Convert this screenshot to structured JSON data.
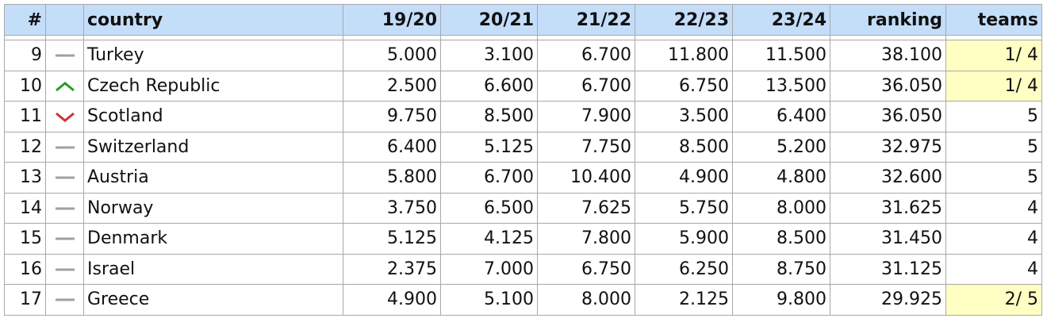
{
  "table": {
    "headers": [
      "#",
      "country",
      "19/20",
      "20/21",
      "21/22",
      "22/23",
      "23/24",
      "ranking",
      "teams"
    ],
    "rows": [
      [
        9,
        "Turkey",
        "5.000",
        "3.100",
        "6.700",
        "11.800",
        "11.500",
        "38.100",
        "1/ 4"
      ],
      [
        10,
        "Czech Republic",
        "2.500",
        "6.600",
        "6.700",
        "6.750",
        "13.500",
        "36.050",
        "1/ 4"
      ],
      [
        11,
        "Scotland",
        "9.750",
        "8.500",
        "7.900",
        "3.500",
        "6.400",
        "36.050",
        "5"
      ],
      [
        12,
        "Switzerland",
        "6.400",
        "5.125",
        "7.750",
        "8.500",
        "5.200",
        "32.975",
        "5"
      ],
      [
        13,
        "Austria",
        "5.800",
        "6.700",
        "10.400",
        "4.900",
        "4.800",
        "32.600",
        "5"
      ],
      [
        14,
        "Norway",
        "3.750",
        "6.500",
        "7.625",
        "5.750",
        "8.000",
        "31.625",
        "4"
      ],
      [
        15,
        "Denmark",
        "5.125",
        "4.125",
        "7.800",
        "5.900",
        "8.500",
        "31.450",
        "4"
      ],
      [
        16,
        "Israel",
        "2.375",
        "7.000",
        "6.750",
        "6.250",
        "8.750",
        "31.125",
        "4"
      ],
      [
        17,
        "Greece",
        "4.900",
        "5.100",
        "8.000",
        "2.125",
        "9.800",
        "29.925",
        "2/ 5"
      ]
    ]
  }
}
